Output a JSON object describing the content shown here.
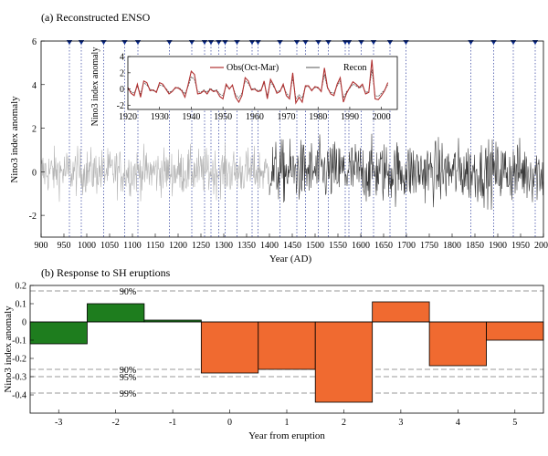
{
  "chart_data": [
    {
      "type": "line",
      "title": "(a) Reconstructed ENSO",
      "xlabel": "Year (AD)",
      "ylabel": "Nino3 index anomaly",
      "xlim": [
        900,
        2000
      ],
      "ylim": [
        -3,
        6
      ],
      "xticks": [
        "900",
        "950",
        "1000",
        "1050",
        "1100",
        "1150",
        "1200",
        "1250",
        "1300",
        "1350",
        "1400",
        "1450",
        "1500",
        "1550",
        "1600",
        "1650",
        "1700",
        "1750",
        "1800",
        "1850",
        "1900",
        "1950",
        "2000"
      ],
      "yticks": [
        "-2",
        "0",
        "2",
        "4",
        "6"
      ],
      "eruption_years": [
        962,
        988,
        1037,
        1083,
        1112,
        1181,
        1230,
        1258,
        1272,
        1289,
        1303,
        1329,
        1362,
        1375,
        1423,
        1460,
        1479,
        1507,
        1529,
        1566,
        1574,
        1601,
        1628,
        1664,
        1699,
        1841,
        1891,
        1934,
        1982
      ],
      "series_note": "annual reconstruction, light before ~1400, dark after",
      "colors": {
        "early": "#b4b4b4",
        "late": "#3a3a3a",
        "marker": "#0a2a8c",
        "vline": "#2a3a9c"
      },
      "inset": {
        "type": "line",
        "xlabel": "",
        "ylabel": "Nino3 index anomaly",
        "xlim": [
          1920,
          2005
        ],
        "ylim": [
          -2.5,
          4
        ],
        "xticks": [
          "1920",
          "1930",
          "1940",
          "1950",
          "1960",
          "1970",
          "1980",
          "1990",
          "2000"
        ],
        "yticks": [
          "-2",
          "0",
          "2",
          "4"
        ],
        "legend": [
          "Obs(Oct-Mar)",
          "Recon"
        ],
        "legend_position": "top",
        "colors": {
          "obs": "#b03030",
          "recon": "#555555"
        },
        "years": [
          1920,
          1921,
          1922,
          1923,
          1924,
          1925,
          1926,
          1927,
          1928,
          1929,
          1930,
          1931,
          1932,
          1933,
          1934,
          1935,
          1936,
          1937,
          1938,
          1939,
          1940,
          1941,
          1942,
          1943,
          1944,
          1945,
          1946,
          1947,
          1948,
          1949,
          1950,
          1951,
          1952,
          1953,
          1954,
          1955,
          1956,
          1957,
          1958,
          1959,
          1960,
          1961,
          1962,
          1963,
          1964,
          1965,
          1966,
          1967,
          1968,
          1969,
          1970,
          1971,
          1972,
          1973,
          1974,
          1975,
          1976,
          1977,
          1978,
          1979,
          1980,
          1981,
          1982,
          1983,
          1984,
          1985,
          1986,
          1987,
          1988,
          1989,
          1990,
          1991,
          1992,
          1993,
          1994,
          1995,
          1996,
          1997,
          1998,
          1999,
          2000,
          2001,
          2002
        ],
        "obs": [
          0.2,
          -0.5,
          -0.8,
          0.6,
          -1.0,
          1.0,
          0.8,
          -0.2,
          -0.1,
          -0.4,
          0.8,
          0.6,
          0.0,
          -0.6,
          -0.3,
          0.2,
          0.1,
          -0.2,
          -1.0,
          0.5,
          2.2,
          1.8,
          -0.6,
          -0.5,
          -0.2,
          -0.6,
          0.0,
          -0.3,
          -0.2,
          -0.9,
          -1.2,
          0.6,
          0.0,
          0.5,
          -1.0,
          -1.6,
          -0.8,
          1.4,
          1.0,
          -0.1,
          0.0,
          -0.3,
          -0.2,
          1.0,
          -1.2,
          1.2,
          0.5,
          -0.5,
          -0.3,
          0.6,
          -0.8,
          -1.2,
          2.0,
          -1.7,
          -1.0,
          -1.6,
          0.4,
          0.4,
          -0.2,
          0.3,
          0.2,
          -0.3,
          2.6,
          0.2,
          -0.6,
          -0.8,
          0.6,
          1.4,
          -1.6,
          -0.5,
          0.2,
          0.9,
          0.6,
          0.2,
          0.6,
          -0.6,
          -0.4,
          3.6,
          -1.2,
          -1.3,
          -0.8,
          -0.2,
          0.8
        ],
        "recon": [
          0.0,
          -0.3,
          -0.5,
          0.3,
          -0.6,
          0.8,
          0.5,
          0.0,
          -0.2,
          -0.3,
          0.5,
          0.4,
          0.1,
          -0.4,
          -0.2,
          0.1,
          0.2,
          -0.1,
          -0.6,
          0.3,
          1.5,
          1.2,
          -0.3,
          -0.4,
          -0.1,
          -0.4,
          0.1,
          -0.2,
          -0.1,
          -0.6,
          -0.8,
          0.4,
          0.1,
          0.4,
          -0.7,
          -1.1,
          -0.5,
          1.0,
          0.7,
          0.0,
          0.1,
          -0.2,
          -0.1,
          0.7,
          -0.8,
          0.9,
          0.3,
          -0.3,
          -0.2,
          0.4,
          -0.5,
          -0.9,
          1.4,
          -1.2,
          -0.7,
          -1.1,
          0.3,
          0.3,
          -0.1,
          0.2,
          0.1,
          -0.2,
          1.8,
          0.1,
          -0.4,
          -0.5,
          0.4,
          1.0,
          -1.1,
          -0.3,
          0.1,
          0.6,
          0.4,
          0.1,
          0.4,
          -0.4,
          -0.3,
          2.4,
          -0.8,
          -0.9,
          -0.5,
          -0.1,
          0.5
        ]
      }
    },
    {
      "type": "bar",
      "title": "(b) Response to SH eruptions",
      "xlabel": "Year from eruption",
      "ylabel": "Nino3 index anomaly",
      "xlim": [
        -3.5,
        5.5
      ],
      "ylim": [
        -0.5,
        0.2
      ],
      "xticks": [
        "-3",
        "-2",
        "-1",
        "0",
        "1",
        "2",
        "3",
        "4",
        "5"
      ],
      "yticks": [
        "-0.4",
        "-0.3",
        "-0.2",
        "-0.1",
        "0",
        "0.1",
        "0.2"
      ],
      "categories": [
        -3,
        -2,
        -1,
        0,
        1,
        2,
        3,
        4,
        5
      ],
      "values": [
        -0.12,
        0.1,
        0.01,
        -0.28,
        -0.26,
        -0.44,
        0.11,
        -0.24,
        -0.1
      ],
      "colors": {
        "pre": "#1e7d1e",
        "post": "#f06a30"
      },
      "thresholds": [
        {
          "label": "90%",
          "value": 0.17
        },
        {
          "label": "90%",
          "value": -0.26
        },
        {
          "label": "95%",
          "value": -0.3
        },
        {
          "label": "99%",
          "value": -0.39
        }
      ]
    }
  ]
}
